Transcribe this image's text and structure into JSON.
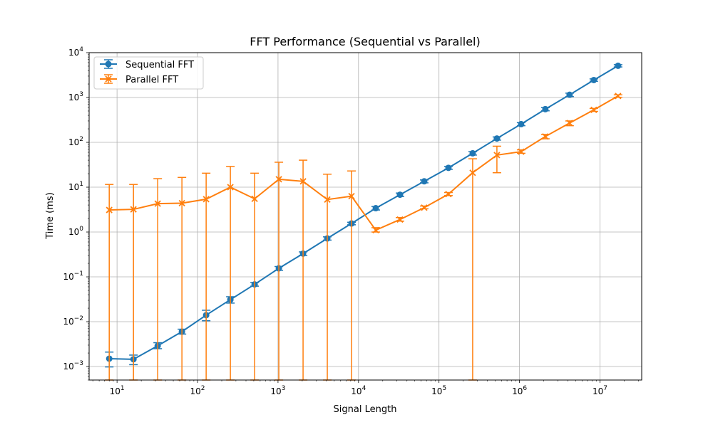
{
  "chart_data": {
    "type": "line",
    "title": "FFT Performance (Sequential vs Parallel)",
    "xlabel": "Signal Length",
    "ylabel": "Time (ms)",
    "xscale": "log",
    "yscale": "log",
    "xlim": [
      4.5,
      33000000
    ],
    "ylim": [
      0.0005,
      10000
    ],
    "grid": true,
    "legend_position": "top-left",
    "x_ticks": [
      {
        "value": 10,
        "mantissa": "10",
        "exp": "1"
      },
      {
        "value": 100,
        "mantissa": "10",
        "exp": "2"
      },
      {
        "value": 1000,
        "mantissa": "10",
        "exp": "3"
      },
      {
        "value": 10000,
        "mantissa": "10",
        "exp": "4"
      },
      {
        "value": 100000,
        "mantissa": "10",
        "exp": "5"
      },
      {
        "value": 1000000,
        "mantissa": "10",
        "exp": "6"
      },
      {
        "value": 10000000,
        "mantissa": "10",
        "exp": "7"
      }
    ],
    "y_ticks": [
      {
        "value": 0.001,
        "mantissa": "10",
        "exp": "−3"
      },
      {
        "value": 0.01,
        "mantissa": "10",
        "exp": "−2"
      },
      {
        "value": 0.1,
        "mantissa": "10",
        "exp": "−1"
      },
      {
        "value": 1,
        "mantissa": "10",
        "exp": "0"
      },
      {
        "value": 10,
        "mantissa": "10",
        "exp": "1"
      },
      {
        "value": 100,
        "mantissa": "10",
        "exp": "2"
      },
      {
        "value": 1000,
        "mantissa": "10",
        "exp": "3"
      },
      {
        "value": 10000,
        "mantissa": "10",
        "exp": "4"
      }
    ],
    "x": [
      8,
      16,
      32,
      64,
      128,
      256,
      512,
      1024,
      2048,
      4096,
      8192,
      16384,
      32768,
      65536,
      131072,
      262144,
      524288,
      1048576,
      2097152,
      4194304,
      8388608,
      16777216
    ],
    "series": [
      {
        "name": "Sequential FFT",
        "color": "#1f77b4",
        "marker": "circle",
        "values": [
          0.0015,
          0.00145,
          0.0029,
          0.006,
          0.014,
          0.031,
          0.068,
          0.155,
          0.33,
          0.72,
          1.55,
          3.4,
          6.8,
          13.5,
          27,
          57,
          122,
          255,
          550,
          1150,
          2450,
          5100
        ],
        "err_low": [
          0.00098,
          0.0011,
          0.0025,
          0.0053,
          0.0105,
          0.026,
          0.062,
          0.14,
          0.3,
          0.66,
          1.45,
          3.1,
          6.2,
          12.5,
          25,
          52,
          112,
          235,
          505,
          1050,
          2300,
          4800
        ],
        "err_high": [
          0.0021,
          0.0018,
          0.0034,
          0.0068,
          0.018,
          0.036,
          0.075,
          0.17,
          0.36,
          0.78,
          1.65,
          3.7,
          7.4,
          14.5,
          29,
          62,
          132,
          275,
          595,
          1250,
          2600,
          5400
        ]
      },
      {
        "name": "Parallel FFT",
        "color": "#ff7f0e",
        "marker": "x",
        "values": [
          3.1,
          3.2,
          4.3,
          4.4,
          5.4,
          10,
          5.5,
          15,
          13.5,
          5.3,
          6.3,
          1.1,
          1.9,
          3.5,
          7,
          21,
          52,
          62,
          135,
          270,
          530,
          1080
        ],
        "err_low": [
          0.0005,
          0.0005,
          0.0005,
          0.0005,
          0.0005,
          0.0005,
          0.0005,
          0.0005,
          0.0005,
          0.0005,
          0.0005,
          1.0,
          1.75,
          3.3,
          6.5,
          0.0005,
          21,
          57,
          120,
          235,
          490,
          1010
        ],
        "err_high": [
          11.5,
          11.5,
          15.5,
          16.5,
          20.5,
          29,
          20.5,
          36,
          40,
          19.5,
          23,
          1.25,
          2.1,
          3.8,
          7.6,
          43,
          82,
          68,
          150,
          300,
          570,
          1150
        ]
      }
    ]
  }
}
